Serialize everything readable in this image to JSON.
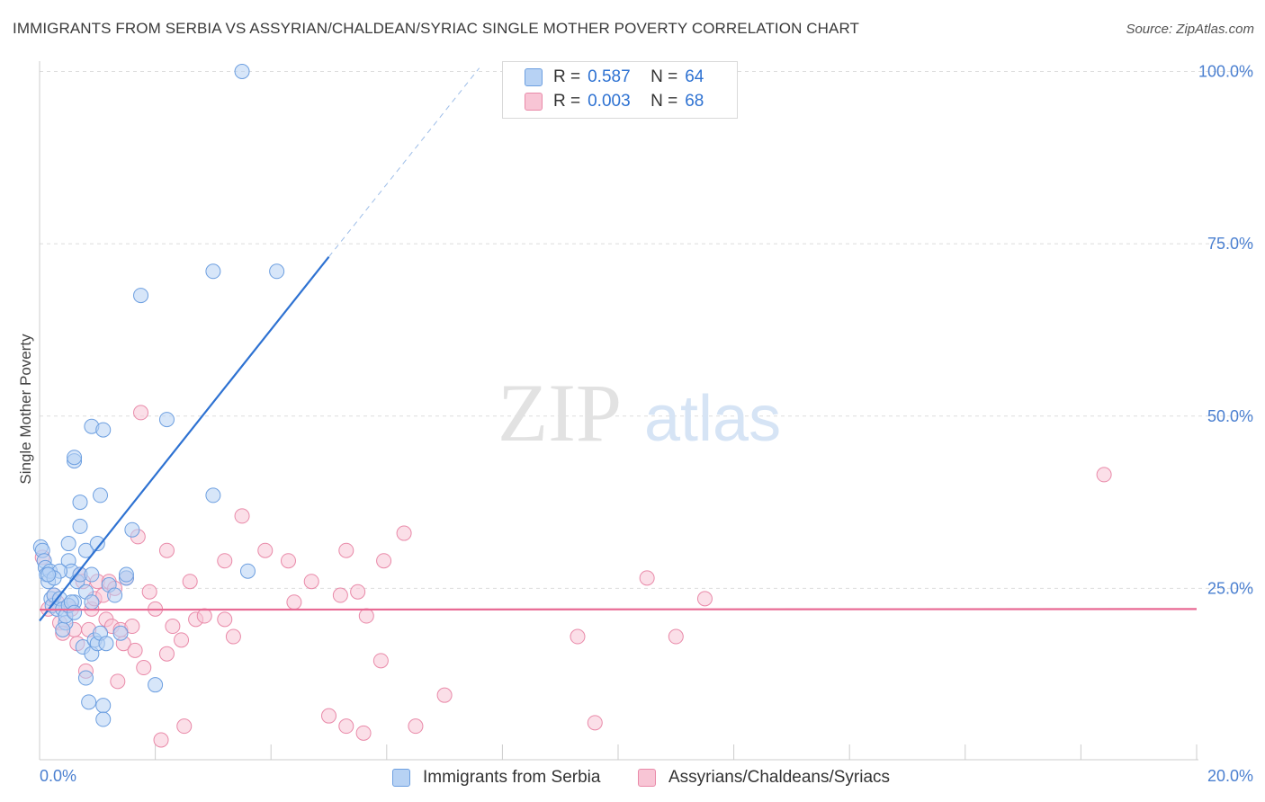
{
  "header": {
    "title": "IMMIGRANTS FROM SERBIA VS ASSYRIAN/CHALDEAN/SYRIAC SINGLE MOTHER POVERTY CORRELATION CHART",
    "source": "Source: ZipAtlas.com"
  },
  "watermark": {
    "zip": "ZIP",
    "atlas": "atlas"
  },
  "legend": {
    "rows": [
      {
        "r_label": "R =",
        "r_value": "0.587",
        "n_label": "N =",
        "n_value": "64"
      },
      {
        "r_label": "R =",
        "r_value": "0.003",
        "n_label": "N =",
        "n_value": "68"
      }
    ]
  },
  "colors": {
    "blue_fill": "#b7d2f4",
    "blue_stroke": "#6d9fe0",
    "blue_line": "#2e72d2",
    "pink_fill": "#f8c5d5",
    "pink_stroke": "#e98aa9",
    "pink_line": "#e86a94",
    "tick_text": "#4a7fd0",
    "grid": "#dddddd"
  },
  "chart_data": {
    "type": "scatter",
    "title": "IMMIGRANTS FROM SERBIA VS ASSYRIAN/CHALDEAN/SYRIAC SINGLE MOTHER POVERTY CORRELATION CHART",
    "xlabel": "",
    "ylabel": "Single Mother Poverty",
    "xlim": [
      0,
      20
    ],
    "ylim": [
      0,
      100
    ],
    "x_tick_labels": [
      "0.0%",
      "20.0%"
    ],
    "y_ticks": [
      25,
      50,
      75,
      100
    ],
    "y_tick_labels": [
      "25.0%",
      "50.0%",
      "75.0%",
      "100.0%"
    ],
    "grid": true,
    "legend_position": "top-center",
    "series": [
      {
        "name": "Immigrants from Serbia",
        "color": "#6d9fe0",
        "r": 0.587,
        "n": 64,
        "trend": {
          "x0": 0,
          "y0": 20.3,
          "x1": 5.0,
          "y1": 73.1,
          "dashed_to_x": 7.6,
          "dashed_to_y": 100.5
        },
        "points": [
          [
            0.02,
            31.0
          ],
          [
            0.05,
            30.5
          ],
          [
            0.08,
            29.0
          ],
          [
            0.1,
            28.0
          ],
          [
            0.12,
            27.0
          ],
          [
            0.15,
            26.0
          ],
          [
            0.18,
            27.5
          ],
          [
            0.2,
            23.5
          ],
          [
            0.22,
            22.5
          ],
          [
            0.25,
            24.0
          ],
          [
            0.3,
            22.0
          ],
          [
            0.35,
            23.5
          ],
          [
            0.4,
            22.0
          ],
          [
            0.45,
            20.0
          ],
          [
            0.5,
            31.5
          ],
          [
            0.5,
            29.0
          ],
          [
            0.55,
            27.5
          ],
          [
            0.6,
            23.0
          ],
          [
            0.65,
            26.0
          ],
          [
            0.7,
            27.0
          ],
          [
            0.75,
            16.5
          ],
          [
            0.8,
            24.5
          ],
          [
            0.8,
            12.0
          ],
          [
            0.85,
            8.5
          ],
          [
            0.9,
            23.0
          ],
          [
            0.9,
            15.5
          ],
          [
            0.95,
            17.5
          ],
          [
            1.0,
            17.0
          ],
          [
            1.05,
            18.5
          ],
          [
            1.1,
            8.0
          ],
          [
            1.1,
            6.0
          ],
          [
            1.15,
            17.0
          ],
          [
            1.2,
            25.5
          ],
          [
            1.3,
            24.0
          ],
          [
            1.4,
            18.5
          ],
          [
            1.5,
            26.5
          ],
          [
            0.7,
            37.5
          ],
          [
            0.7,
            34.0
          ],
          [
            0.6,
            43.5
          ],
          [
            0.6,
            44.0
          ],
          [
            0.9,
            48.5
          ],
          [
            1.1,
            48.0
          ],
          [
            1.05,
            38.5
          ],
          [
            1.6,
            33.5
          ],
          [
            1.75,
            67.5
          ],
          [
            2.2,
            49.5
          ],
          [
            2.0,
            11.0
          ],
          [
            0.35,
            27.5
          ],
          [
            0.25,
            26.5
          ],
          [
            0.15,
            27.0
          ],
          [
            0.8,
            30.5
          ],
          [
            0.9,
            27.0
          ],
          [
            3.0,
            71.0
          ],
          [
            4.1,
            71.0
          ],
          [
            3.0,
            38.5
          ],
          [
            3.6,
            27.5
          ],
          [
            3.5,
            100.0
          ],
          [
            0.4,
            19.0
          ],
          [
            0.45,
            21.0
          ],
          [
            0.5,
            22.5
          ],
          [
            0.55,
            23.0
          ],
          [
            0.6,
            21.5
          ],
          [
            1.0,
            31.5
          ],
          [
            1.5,
            27.0
          ]
        ]
      },
      {
        "name": "Assyrians/Chaldeans/Syriacs",
        "color": "#e98aa9",
        "r": 0.003,
        "n": 68,
        "trend": {
          "x0": 0,
          "y0": 21.9,
          "x1": 20,
          "y1": 22.0
        },
        "points": [
          [
            0.05,
            29.5
          ],
          [
            0.15,
            22.0
          ],
          [
            0.25,
            24.0
          ],
          [
            0.3,
            23.0
          ],
          [
            0.35,
            20.0
          ],
          [
            0.4,
            18.5
          ],
          [
            0.5,
            22.5
          ],
          [
            0.55,
            22.0
          ],
          [
            0.6,
            19.0
          ],
          [
            0.65,
            17.0
          ],
          [
            0.7,
            27.0
          ],
          [
            0.75,
            26.0
          ],
          [
            0.8,
            13.0
          ],
          [
            0.85,
            19.0
          ],
          [
            0.9,
            22.0
          ],
          [
            0.95,
            23.5
          ],
          [
            1.0,
            26.0
          ],
          [
            1.1,
            24.0
          ],
          [
            1.15,
            20.5
          ],
          [
            1.2,
            26.0
          ],
          [
            1.25,
            19.5
          ],
          [
            1.3,
            25.0
          ],
          [
            1.35,
            11.5
          ],
          [
            1.4,
            19.0
          ],
          [
            1.45,
            17.0
          ],
          [
            1.5,
            26.5
          ],
          [
            1.6,
            19.5
          ],
          [
            1.65,
            16.0
          ],
          [
            1.7,
            32.5
          ],
          [
            1.75,
            50.5
          ],
          [
            1.8,
            13.5
          ],
          [
            1.9,
            24.5
          ],
          [
            2.0,
            22.0
          ],
          [
            2.1,
            3.0
          ],
          [
            2.2,
            15.5
          ],
          [
            2.2,
            30.5
          ],
          [
            2.3,
            19.5
          ],
          [
            2.45,
            17.5
          ],
          [
            2.5,
            5.0
          ],
          [
            2.6,
            26.0
          ],
          [
            2.7,
            20.5
          ],
          [
            2.85,
            21.0
          ],
          [
            3.2,
            20.5
          ],
          [
            3.2,
            29.0
          ],
          [
            3.35,
            18.0
          ],
          [
            3.5,
            35.5
          ],
          [
            3.9,
            30.5
          ],
          [
            4.3,
            29.0
          ],
          [
            4.4,
            23.0
          ],
          [
            4.7,
            26.0
          ],
          [
            5.0,
            6.5
          ],
          [
            5.2,
            24.0
          ],
          [
            5.3,
            30.5
          ],
          [
            5.3,
            5.0
          ],
          [
            5.5,
            24.5
          ],
          [
            5.6,
            4.0
          ],
          [
            5.65,
            21.0
          ],
          [
            5.9,
            14.5
          ],
          [
            5.95,
            29.0
          ],
          [
            6.3,
            33.0
          ],
          [
            6.5,
            5.0
          ],
          [
            7.0,
            9.5
          ],
          [
            9.3,
            18.0
          ],
          [
            9.6,
            5.5
          ],
          [
            10.5,
            26.5
          ],
          [
            11.0,
            18.0
          ],
          [
            11.5,
            23.5
          ],
          [
            18.4,
            41.5
          ]
        ]
      }
    ]
  }
}
